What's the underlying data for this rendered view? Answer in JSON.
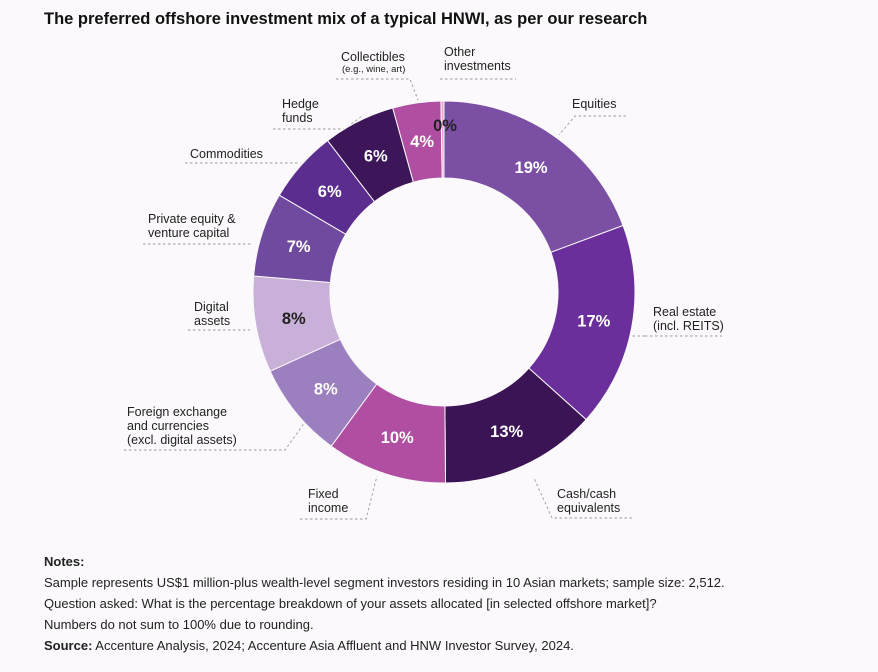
{
  "title": "The preferred offshore investment mix of a typical HNWI, as per our research",
  "chart_data": {
    "type": "pie",
    "variant": "donut",
    "title": "The preferred offshore investment mix of a typical HNWI, as per our research",
    "slices": [
      {
        "label": "Equities",
        "value": 19,
        "value_label": "19%",
        "color": "#7b4fa4"
      },
      {
        "label": "Real estate (incl. REITS)",
        "value": 17,
        "value_label": "17%",
        "color": "#6a2f9a"
      },
      {
        "label": "Cash/cash equivalents",
        "value": 13,
        "value_label": "13%",
        "color": "#3a1454"
      },
      {
        "label": "Fixed income",
        "value": 10,
        "value_label": "10%",
        "color": "#b04fa2"
      },
      {
        "label": "Foreign exchange and currencies (excl. digital assets)",
        "value": 8,
        "value_label": "8%",
        "color": "#9b7fbf"
      },
      {
        "label": "Digital assets",
        "value": 8,
        "value_label": "8%",
        "color": "#c8b0d8"
      },
      {
        "label": "Private equity & venture capital",
        "value": 7,
        "value_label": "7%",
        "color": "#6f4a9e"
      },
      {
        "label": "Commodities",
        "value": 6,
        "value_label": "6%",
        "color": "#5b2d8f"
      },
      {
        "label": "Hedge funds",
        "value": 6,
        "value_label": "6%",
        "color": "#3c1658"
      },
      {
        "label": "Collectibles (e.g., wine, art)",
        "value": 4,
        "value_label": "4%",
        "color": "#b04fa2"
      },
      {
        "label": "Other investments",
        "value": 0,
        "value_label": "0%",
        "color": "#e9a6d3"
      }
    ]
  },
  "labels": {
    "equities": [
      "Equities"
    ],
    "real_estate": [
      "Real estate",
      "(incl. REITS)"
    ],
    "cash": [
      "Cash/cash",
      "equivalents"
    ],
    "fixed_income": [
      "Fixed",
      "income"
    ],
    "forex": [
      "Foreign exchange",
      "and currencies",
      "(excl. digital assets)"
    ],
    "digital": [
      "Digital",
      "assets"
    ],
    "private_equity": [
      "Private equity &",
      "venture capital"
    ],
    "commodities": [
      "Commodities"
    ],
    "hedge": [
      "Hedge",
      "funds"
    ],
    "collectibles": [
      "Collectibles"
    ],
    "collectibles_sub": "(e.g., wine, art)",
    "other": [
      "Other",
      "investments"
    ]
  },
  "notes": {
    "heading": "Notes:",
    "lines": [
      "Sample represents US$1 million-plus wealth-level segment investors residing in 10 Asian markets; sample size: 2,512.",
      "Question asked: What is the percentage breakdown of your assets allocated [in selected offshore market]?",
      "Numbers do not sum to 100% due to rounding."
    ],
    "source_label": "Source:",
    "source_text": " Accenture Analysis, 2024; Accenture Asia Affluent and HNW Investor Survey, 2024."
  }
}
